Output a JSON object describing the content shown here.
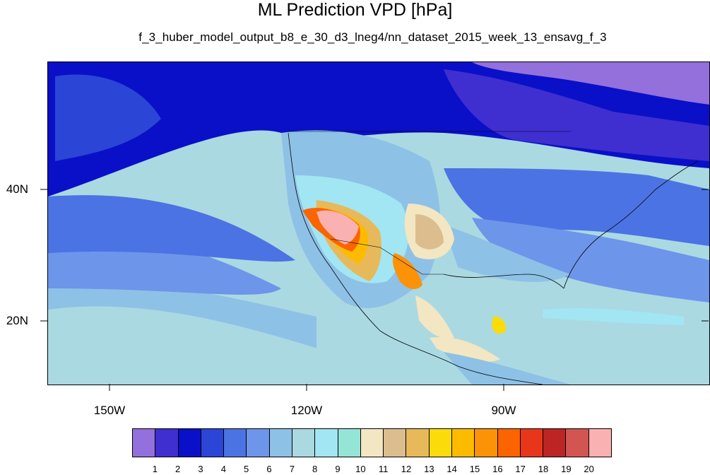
{
  "title": "ML Prediction VPD [hPa]",
  "subtitle": "f_3_huber_model_output_b8_e_30_d3_lneg4/nn_dataset_2015_week_13_ensavg_f_3",
  "map": {
    "region": "North America, Eastern Pacific and Central America",
    "projection": "cylindrical equidistant",
    "lon_ticks": [
      {
        "label": "150W",
        "value": -150
      },
      {
        "label": "120W",
        "value": -120
      },
      {
        "label": "90W",
        "value": -90
      }
    ],
    "lat_ticks": [
      {
        "label": "40N",
        "value": 40
      },
      {
        "label": "20N",
        "value": 20
      }
    ]
  },
  "colorbar": {
    "labels": [
      "1",
      "2",
      "3",
      "4",
      "5",
      "6",
      "7",
      "8",
      "9",
      "10",
      "11",
      "12",
      "13",
      "14",
      "15",
      "16",
      "17",
      "18",
      "19",
      "20"
    ],
    "colors": [
      "#9370db",
      "#3f2fd0",
      "#0a10c8",
      "#2b45d6",
      "#4b73e3",
      "#6d95ea",
      "#8ec1e6",
      "#aad9e2",
      "#a1e6f2",
      "#94e5d6",
      "#f3e6c2",
      "#dcbe8e",
      "#e7b95a",
      "#fbdc0a",
      "#fdbb00",
      "#fb9208",
      "#fb6400",
      "#e8361b",
      "#bc2524",
      "#d25552",
      "#fab1b1"
    ]
  }
}
